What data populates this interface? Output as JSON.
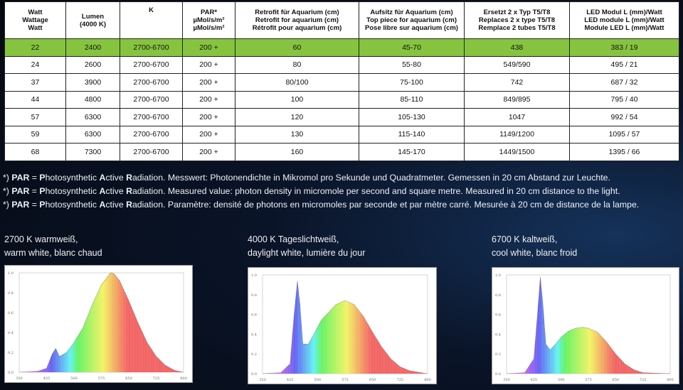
{
  "table": {
    "headers": [
      "Watt\nWattage\nWatt",
      "Lumen\n(4000 K)",
      "K",
      "PAR*\nµMol/s/m²\nµMol/s/m²",
      "Retrofit für Aquarium (cm)\nRetrofit for aquarium (cm)\nRétrofit pour aquarium (cm)",
      "Aufsitz für Aquarium (cm)\nTop piece for aquarium (cm)\nPose libre sur aquarium (cm)",
      "Ersetzt 2 x Typ T5/T8\nReplaces 2 x type T5/T8\nRemplace 2 tubes T5/T8",
      "LED Modul L (mm)/Watt\nLED module L (mm)/Watt\nModule LED L (mm)/Watt"
    ],
    "rows": [
      [
        "22",
        "2400",
        "2700-6700",
        "200 +",
        "60",
        "45-70",
        "438",
        "383 / 19"
      ],
      [
        "24",
        "2600",
        "2700-6700",
        "200 +",
        "80",
        "55-80",
        "549/590",
        "495 / 21"
      ],
      [
        "37",
        "3900",
        "2700-6700",
        "200 +",
        "80/100",
        "75-100",
        "742",
        "687 / 32"
      ],
      [
        "44",
        "4800",
        "2700-6700",
        "200 +",
        "100",
        "85-110",
        "849/895",
        "795 / 40"
      ],
      [
        "57",
        "6300",
        "2700-6700",
        "200 +",
        "120",
        "105-130",
        "1047",
        "992 / 54"
      ],
      [
        "59",
        "6300",
        "2700-6700",
        "200 +",
        "130",
        "115-140",
        "1149/1200",
        "1095 / 57"
      ],
      [
        "68",
        "7300",
        "2700-6700",
        "200 +",
        "160",
        "145-170",
        "1449/1500",
        "1395 / 66"
      ]
    ],
    "highlight_row": 0,
    "highlight_color": "#86c440"
  },
  "notes": [
    {
      "prefix": "*) ",
      "abbr": "PAR",
      "eq": " = ",
      "p": "P",
      "hoto": "hotosynthetic ",
      "a": "A",
      "ctive": "ctive ",
      "r": "R",
      "rest": "adiation. Messwert: Photonendichte in Mikromol pro Sekunde und Quadratmeter. Gemessen in 20 cm Abstand zur Leuchte."
    },
    {
      "prefix": "*) ",
      "abbr": "PAR",
      "eq": " = ",
      "p": "P",
      "hoto": "hotosynthetic ",
      "a": "A",
      "ctive": "ctive ",
      "r": "R",
      "rest": "adiation. Measured value: photon density in micromole per second and square metre. Measured in 20 cm distance to the light."
    },
    {
      "prefix": "*) ",
      "abbr": "PAR",
      "eq": " = ",
      "p": "P",
      "hoto": "hotosynthetic ",
      "a": "A",
      "ctive": "ctive ",
      "r": "R",
      "rest": "adiation. Paramètre: densité de photons en micromoles par seconde et par mètre carré. Mesurée à 20 cm de distance de la lampe."
    }
  ],
  "chart_data": [
    {
      "type": "area",
      "title_line1": "2700 K warmweiß,",
      "title_line2": "warm white, blanc chaud",
      "x": [
        350,
        400,
        425,
        440,
        450,
        460,
        480,
        500,
        525,
        550,
        575,
        600,
        610,
        625,
        650,
        675,
        700,
        725,
        750,
        775,
        800
      ],
      "y": [
        0,
        0.01,
        0.04,
        0.18,
        0.24,
        0.16,
        0.2,
        0.3,
        0.45,
        0.68,
        0.88,
        1.0,
        0.99,
        0.92,
        0.72,
        0.5,
        0.3,
        0.16,
        0.07,
        0.02,
        0
      ],
      "xticks": [
        "350",
        "425",
        "500",
        "575",
        "650",
        "725",
        "800"
      ],
      "yticks": [
        "1.0",
        "0.8",
        "0.6",
        "0.4",
        "0.2",
        "0.0"
      ],
      "ylim": [
        0,
        1.0
      ]
    },
    {
      "type": "area",
      "title_line1": "4000 K Tageslichtweiß,",
      "title_line2": "daylight white, lumière du jour",
      "x": [
        350,
        400,
        425,
        435,
        445,
        452,
        460,
        475,
        490,
        510,
        530,
        550,
        575,
        600,
        625,
        650,
        675,
        700,
        725,
        750,
        800
      ],
      "y": [
        0,
        0.01,
        0.1,
        0.55,
        0.94,
        0.7,
        0.3,
        0.3,
        0.4,
        0.54,
        0.62,
        0.7,
        0.74,
        0.7,
        0.58,
        0.42,
        0.27,
        0.15,
        0.07,
        0.03,
        0
      ],
      "xticks": [
        "350",
        "425",
        "500",
        "575",
        "650",
        "725",
        "800"
      ],
      "yticks": [
        "1.0",
        "0.8",
        "0.6",
        "0.4",
        "0.2",
        "0.0"
      ],
      "ylim": [
        0,
        1.0
      ]
    },
    {
      "type": "area",
      "title_line1": "6700 K kaltweiß,",
      "title_line2": "cool white, blanc froid",
      "x": [
        350,
        400,
        425,
        435,
        443,
        450,
        458,
        470,
        485,
        500,
        520,
        540,
        560,
        575,
        600,
        625,
        650,
        675,
        700,
        725,
        800
      ],
      "y": [
        0,
        0.01,
        0.15,
        0.6,
        0.98,
        0.7,
        0.3,
        0.24,
        0.3,
        0.37,
        0.43,
        0.46,
        0.47,
        0.46,
        0.42,
        0.32,
        0.2,
        0.1,
        0.04,
        0.01,
        0
      ],
      "xticks": [
        "350",
        "425",
        "500",
        "575",
        "650",
        "725",
        "800"
      ],
      "yticks": [
        "1.0",
        "0.8",
        "0.6",
        "0.4",
        "0.2",
        "0.0"
      ],
      "ylim": [
        0,
        1.0
      ]
    }
  ]
}
